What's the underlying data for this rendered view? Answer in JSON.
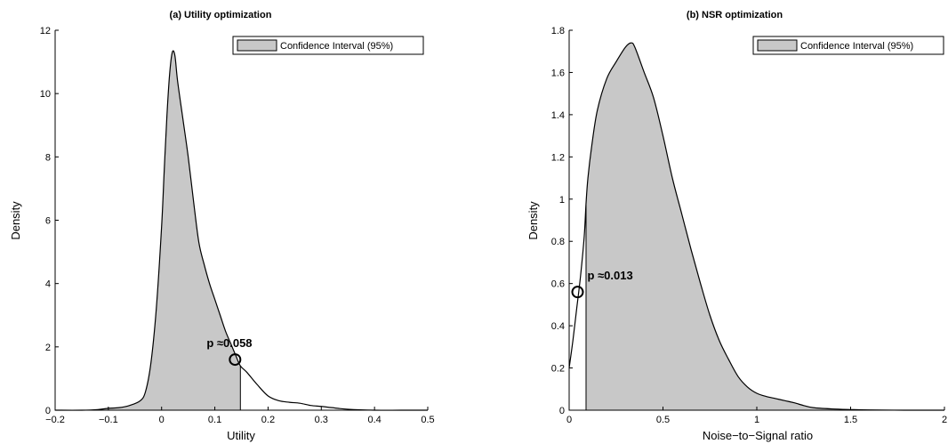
{
  "chart_data": [
    {
      "type": "area",
      "title": "(a) Utility optimization",
      "xlabel": "Utility",
      "ylabel": "Density",
      "xlim": [
        -0.2,
        0.5
      ],
      "ylim": [
        0,
        12
      ],
      "xticks": [
        -0.2,
        -0.1,
        0,
        0.1,
        0.2,
        0.3,
        0.4,
        0.5
      ],
      "xtick_labels": [
        "−0.2",
        "−0.1",
        "0",
        "0.1",
        "0.2",
        "0.3",
        "0.4",
        "0.5"
      ],
      "yticks": [
        0,
        2,
        4,
        6,
        8,
        10,
        12
      ],
      "ytick_labels": [
        "0",
        "2",
        "4",
        "6",
        "8",
        "10",
        "12"
      ],
      "legend": {
        "label": "Confidence Interval (95%)",
        "position": "top-right"
      },
      "ci_shaded_range": [
        -0.2,
        0.148
      ],
      "marker": {
        "x": 0.138,
        "y": 1.6,
        "label": "p ≈0.058"
      },
      "density_curve": {
        "x": [
          -0.2,
          -0.15,
          -0.12,
          -0.1,
          -0.08,
          -0.06,
          -0.04,
          -0.03,
          -0.02,
          -0.01,
          0.0,
          0.005,
          0.01,
          0.015,
          0.02,
          0.025,
          0.03,
          0.04,
          0.05,
          0.06,
          0.07,
          0.08,
          0.09,
          0.1,
          0.11,
          0.12,
          0.13,
          0.14,
          0.148,
          0.16,
          0.18,
          0.2,
          0.22,
          0.24,
          0.26,
          0.28,
          0.3,
          0.32,
          0.35,
          0.4,
          0.45,
          0.5
        ],
        "y": [
          0.0,
          0.0,
          0.02,
          0.06,
          0.08,
          0.15,
          0.3,
          0.6,
          1.5,
          3.2,
          5.8,
          7.6,
          9.3,
          10.6,
          11.3,
          11.2,
          10.4,
          9.2,
          8.0,
          6.6,
          5.3,
          4.6,
          4.0,
          3.5,
          3.0,
          2.5,
          2.1,
          1.7,
          1.4,
          1.2,
          0.8,
          0.45,
          0.3,
          0.25,
          0.22,
          0.15,
          0.12,
          0.08,
          0.03,
          0.0,
          0.0,
          0.0
        ]
      }
    },
    {
      "type": "area",
      "title": "(b) NSR optimization",
      "xlabel": "Noise−to−Signal ratio",
      "ylabel": "Density",
      "xlim": [
        0,
        2
      ],
      "ylim": [
        0,
        1.8
      ],
      "xticks": [
        0,
        0.5,
        1,
        1.5,
        2
      ],
      "xtick_labels": [
        "0",
        "0.5",
        "1",
        "1.5",
        "2"
      ],
      "yticks": [
        0,
        0.2,
        0.4,
        0.6,
        0.8,
        1,
        1.2,
        1.4,
        1.6,
        1.8
      ],
      "ytick_labels": [
        "0",
        "0.2",
        "0.4",
        "0.6",
        "0.8",
        "1",
        "1.2",
        "1.4",
        "1.6",
        "1.8"
      ],
      "legend": {
        "label": "Confidence Interval (95%)",
        "position": "top-right"
      },
      "ci_shaded_range": [
        0.09,
        2.0
      ],
      "marker": {
        "x": 0.045,
        "y": 0.56,
        "label": "p ≈0.013"
      },
      "density_curve": {
        "x": [
          0.0,
          0.02,
          0.04,
          0.06,
          0.08,
          0.09,
          0.1,
          0.12,
          0.15,
          0.2,
          0.25,
          0.3,
          0.33,
          0.35,
          0.4,
          0.45,
          0.5,
          0.55,
          0.6,
          0.65,
          0.7,
          0.75,
          0.8,
          0.85,
          0.9,
          0.95,
          1.0,
          1.05,
          1.1,
          1.15,
          1.2,
          1.25,
          1.3,
          1.4,
          1.5,
          1.6,
          1.8,
          2.0
        ],
        "y": [
          0.2,
          0.33,
          0.48,
          0.63,
          0.82,
          0.98,
          1.1,
          1.25,
          1.42,
          1.57,
          1.65,
          1.72,
          1.74,
          1.72,
          1.6,
          1.48,
          1.3,
          1.1,
          0.93,
          0.76,
          0.6,
          0.45,
          0.33,
          0.24,
          0.16,
          0.11,
          0.08,
          0.065,
          0.055,
          0.045,
          0.035,
          0.022,
          0.012,
          0.006,
          0.003,
          0.001,
          0.0,
          0.0
        ]
      }
    }
  ]
}
